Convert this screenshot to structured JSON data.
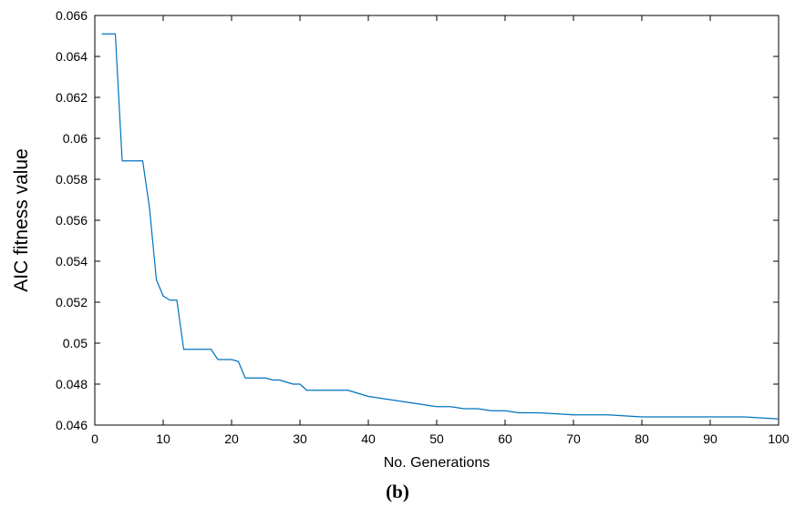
{
  "caption": "(b)",
  "chart_data": {
    "type": "line",
    "title": "",
    "xlabel": "No. Generations",
    "ylabel": "AIC fitness value",
    "xlim": [
      0,
      100
    ],
    "ylim": [
      0.046,
      0.066
    ],
    "xticks": [
      0,
      10,
      20,
      30,
      40,
      50,
      60,
      70,
      80,
      90,
      100
    ],
    "yticks": [
      0.046,
      0.048,
      0.05,
      0.052,
      0.054,
      0.056,
      0.058,
      0.06,
      0.062,
      0.064,
      0.066
    ],
    "xtick_labels": [
      "0",
      "10",
      "20",
      "30",
      "40",
      "50",
      "60",
      "70",
      "80",
      "90",
      "100"
    ],
    "ytick_labels": [
      "0.046",
      "0.048",
      "0.05",
      "0.052",
      "0.054",
      "0.056",
      "0.058",
      "0.06",
      "0.062",
      "0.064",
      "0.066"
    ],
    "grid": false,
    "color": "#0072BD",
    "series": [
      {
        "x": [
          1,
          3,
          4,
          7,
          8,
          9,
          10,
          11,
          12,
          13,
          14,
          15,
          16,
          17,
          18,
          19,
          20,
          21,
          22,
          23,
          24,
          25,
          26,
          27,
          28,
          29,
          30,
          31,
          32,
          33,
          34,
          35,
          36,
          37,
          38,
          40,
          42,
          44,
          46,
          48,
          50,
          52,
          54,
          56,
          58,
          60,
          62,
          65,
          70,
          75,
          80,
          85,
          90,
          95,
          100
        ],
        "y": [
          0.0651,
          0.0651,
          0.0589,
          0.0589,
          0.0566,
          0.0531,
          0.0523,
          0.0521,
          0.0521,
          0.0497,
          0.0497,
          0.0497,
          0.0497,
          0.0497,
          0.0492,
          0.0492,
          0.0492,
          0.0491,
          0.0483,
          0.0483,
          0.0483,
          0.0483,
          0.0482,
          0.0482,
          0.0481,
          0.048,
          0.048,
          0.0477,
          0.0477,
          0.0477,
          0.0477,
          0.0477,
          0.0477,
          0.0477,
          0.0476,
          0.0474,
          0.0473,
          0.0472,
          0.0471,
          0.047,
          0.0469,
          0.0469,
          0.0468,
          0.0468,
          0.0467,
          0.0467,
          0.0466,
          0.0466,
          0.0465,
          0.0465,
          0.0464,
          0.0464,
          0.0464,
          0.0464,
          0.0463
        ]
      }
    ]
  }
}
